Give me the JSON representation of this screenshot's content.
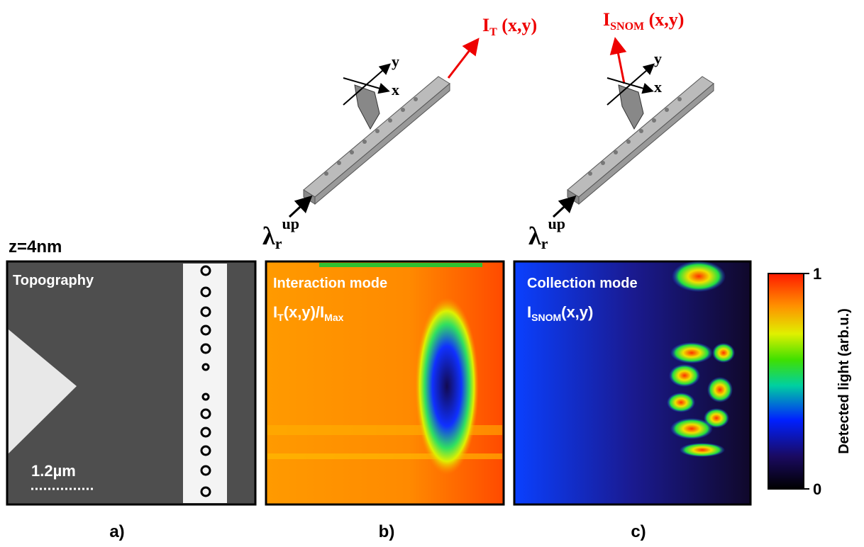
{
  "diagrams": [
    {
      "output": {
        "main": "I",
        "sub": "T",
        "rest": " (x,y)"
      },
      "axis_y": "y",
      "axis_x": "x",
      "input": {
        "main": "λ",
        "sub": "r",
        "sup": "up"
      }
    },
    {
      "output": {
        "main": "I",
        "sub": "SNOM",
        "rest": " (x,y)"
      },
      "axis_y": "y",
      "axis_x": "x",
      "input": {
        "main": "λ",
        "sub": "r",
        "sup": "up"
      }
    }
  ],
  "panels": [
    {
      "heading": "z=4nm",
      "title": "Topography",
      "scale_bar": "1.2µm",
      "caption": "a)"
    },
    {
      "title": "Interaction mode",
      "formula": {
        "a": "I",
        "a_sub": "T",
        "b": "(x,y)/I",
        "b_sub": "Max"
      },
      "caption": "b)"
    },
    {
      "title": "Collection mode",
      "formula": {
        "a": "I",
        "a_sub": "SNOM",
        "b": "(x,y)"
      },
      "caption": "c)"
    }
  ],
  "colorbar": {
    "label": "Detected light (arb.u.)",
    "range": [
      0,
      1
    ],
    "ticks": [
      0,
      1
    ]
  }
}
